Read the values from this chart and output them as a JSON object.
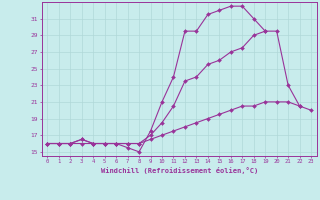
{
  "xlabel": "Windchill (Refroidissement éolien,°C)",
  "bg_color": "#c8ecec",
  "grid_color": "#b0d8d8",
  "line_color": "#993399",
  "x_values": [
    0,
    1,
    2,
    3,
    4,
    5,
    6,
    7,
    8,
    9,
    10,
    11,
    12,
    13,
    14,
    15,
    16,
    17,
    18,
    19,
    20,
    21,
    22,
    23
  ],
  "line1": [
    16.0,
    16.0,
    16.0,
    16.5,
    16.0,
    16.0,
    16.0,
    15.5,
    15.0,
    17.5,
    21.0,
    24.0,
    29.5,
    29.5,
    31.5,
    32.0,
    32.5,
    32.5,
    31.0,
    29.5,
    null,
    null,
    null,
    null
  ],
  "line2": [
    16.0,
    16.0,
    16.0,
    16.5,
    16.0,
    16.0,
    16.0,
    16.0,
    16.0,
    17.0,
    18.5,
    20.5,
    23.5,
    24.0,
    25.5,
    26.0,
    27.0,
    27.5,
    29.0,
    29.5,
    29.5,
    23.0,
    20.5,
    null
  ],
  "line3": [
    16.0,
    16.0,
    16.0,
    16.0,
    16.0,
    16.0,
    16.0,
    16.0,
    16.0,
    16.5,
    17.0,
    17.5,
    18.0,
    18.5,
    19.0,
    19.5,
    20.0,
    20.5,
    20.5,
    21.0,
    21.0,
    21.0,
    20.5,
    20.0
  ],
  "ylim": [
    14.5,
    33.0
  ],
  "xlim": [
    -0.5,
    23.5
  ],
  "yticks": [
    15,
    17,
    19,
    21,
    23,
    25,
    27,
    29,
    31
  ],
  "xticks": [
    0,
    1,
    2,
    3,
    4,
    5,
    6,
    7,
    8,
    9,
    10,
    11,
    12,
    13,
    14,
    15,
    16,
    17,
    18,
    19,
    20,
    21,
    22,
    23
  ]
}
